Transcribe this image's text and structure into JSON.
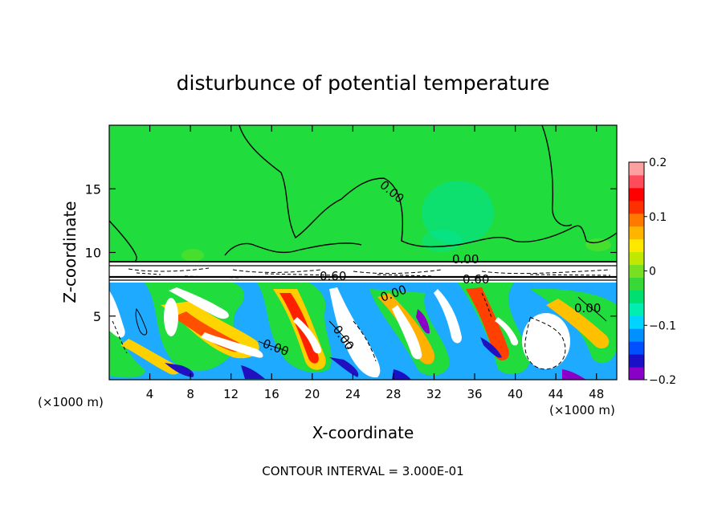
{
  "chart_data": {
    "type": "heatmap",
    "title": "disturbunce of potential temperature",
    "xlabel": "X-coordinate",
    "ylabel": "Z-coordinate",
    "x_unit_label": "(×1000 m)",
    "y_unit_label": "(×1000 m)",
    "xlim": [
      0,
      50
    ],
    "ylim": [
      0,
      20
    ],
    "x_ticks": [
      4,
      8,
      12,
      16,
      20,
      24,
      28,
      32,
      36,
      40,
      44,
      48
    ],
    "y_ticks": [
      5,
      10,
      15
    ],
    "colorbar": {
      "range": [
        -0.2,
        0.2
      ],
      "tick_values": [
        0.2,
        0.1,
        0,
        -0.1,
        -0.2
      ],
      "tick_labels": [
        "0.2",
        "0.1",
        "0",
        "−0.1",
        "−0.2"
      ],
      "colors": [
        "#8b00c8",
        "#1a10c8",
        "#0050ff",
        "#0090ff",
        "#00d4ff",
        "#00eeb0",
        "#00e070",
        "#38d838",
        "#78e020",
        "#c0e800",
        "#ffe800",
        "#ffb400",
        "#ff7800",
        "#ff3000",
        "#ff0000",
        "#ff4c5c",
        "#ffa0a0"
      ]
    },
    "contour_labels": [
      "0.00",
      "0.00",
      "0.00",
      "0.00",
      "0.00",
      "0.00",
      "0.60",
      "0.60"
    ],
    "contour_interval_text": "CONTOUR INTERVAL = 3.000E-01"
  }
}
